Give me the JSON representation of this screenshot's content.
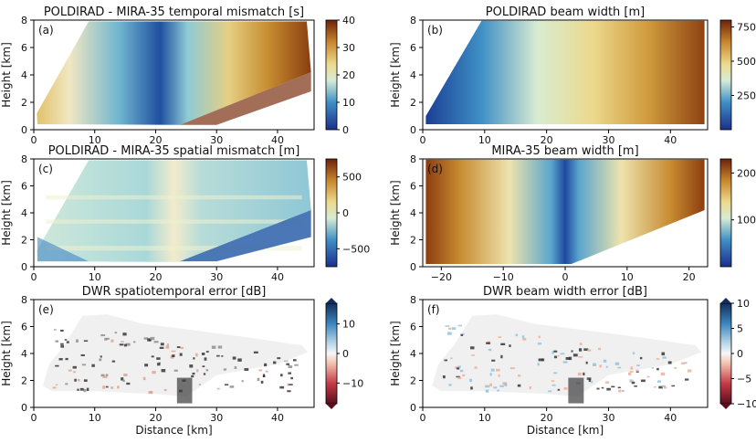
{
  "colors": {
    "balance": [
      "#2a1a6e",
      "#1e4fa5",
      "#3a8bc2",
      "#8fc9d6",
      "#f1f0d4",
      "#e7cb6f",
      "#c98b28",
      "#9c4a15",
      "#5e1608"
    ],
    "cividis_like": [
      "#1b2f8c",
      "#2b73b8",
      "#63b3d1",
      "#bfe0d3",
      "#f2ecc4",
      "#e6c776",
      "#c58d2e",
      "#8b3f10"
    ],
    "diverging_err": [
      "#4a0c1c",
      "#b5283a",
      "#f2a48a",
      "#f5f5f5",
      "#9ecae1",
      "#2f7fba",
      "#14305e"
    ]
  },
  "chart_data": [
    {
      "id": "a",
      "type": "heatmap",
      "panel_label": "(a)",
      "title": "POLDIRAD - MIRA-35 temporal mismatch [s]",
      "ylabel": "Height [km]",
      "xlabel": "",
      "xlim": [
        0,
        46
      ],
      "ylim": [
        0,
        8
      ],
      "xticks": [
        "0",
        "10",
        "20",
        "30",
        "40"
      ],
      "yticks": [
        "0",
        "2",
        "4",
        "6",
        "8"
      ],
      "colorbar": {
        "range": [
          0,
          40
        ],
        "ticks": [
          "0",
          "10",
          "20",
          "30",
          "40"
        ]
      }
    },
    {
      "id": "b",
      "type": "heatmap",
      "panel_label": "(b)",
      "title": "POLDIRAD beam width [m]",
      "ylabel": "Height [km]",
      "xlabel": "",
      "xlim": [
        0,
        46
      ],
      "ylim": [
        0,
        8
      ],
      "xticks": [
        "0",
        "10",
        "20",
        "30",
        "40"
      ],
      "yticks": [
        "0",
        "2",
        "4",
        "6",
        "8"
      ],
      "colorbar": {
        "range": [
          0,
          800
        ],
        "ticks": [
          "250",
          "500",
          "750"
        ]
      }
    },
    {
      "id": "c",
      "type": "heatmap",
      "panel_label": "(c)",
      "title": "POLDIRAD - MIRA-35 spatial mismatch [m]",
      "ylabel": "Height [km]",
      "xlabel": "",
      "xlim": [
        0,
        46
      ],
      "ylim": [
        0,
        8
      ],
      "xticks": [
        "0",
        "10",
        "20",
        "30",
        "40"
      ],
      "yticks": [
        "0",
        "2",
        "4",
        "6",
        "8"
      ],
      "colorbar": {
        "range": [
          -750,
          750
        ],
        "ticks": [
          "500",
          "0",
          "−500"
        ]
      }
    },
    {
      "id": "d",
      "type": "heatmap",
      "panel_label": "(d)",
      "title": "MIRA-35 beam width [m]",
      "ylabel": "Height [km]",
      "xlabel": "",
      "xlim": [
        -23,
        23
      ],
      "ylim": [
        0,
        8
      ],
      "xticks": [
        "−20",
        "−10",
        "0",
        "10",
        "20"
      ],
      "yticks": [
        "0",
        "2",
        "4",
        "6",
        "8"
      ],
      "colorbar": {
        "range": [
          0,
          230
        ],
        "ticks": [
          "200",
          "100"
        ]
      }
    },
    {
      "id": "e",
      "type": "heatmap",
      "panel_label": "(e)",
      "title": "DWR spatiotemporal error [dB]",
      "ylabel": "Height [km]",
      "xlabel": "Distance [km]",
      "xlim": [
        0,
        46
      ],
      "ylim": [
        0,
        8
      ],
      "xticks": [
        "0",
        "10",
        "20",
        "30",
        "40"
      ],
      "yticks": [
        "0",
        "2",
        "4",
        "6",
        "8"
      ],
      "colorbar": {
        "range": [
          -17,
          17
        ],
        "ticks": [
          "10",
          "0",
          "−10"
        ]
      }
    },
    {
      "id": "f",
      "type": "heatmap",
      "panel_label": "(f)",
      "title": "DWR beam width error [dB]",
      "ylabel": "Height [km]",
      "xlabel": "Distance [km]",
      "xlim": [
        0,
        46
      ],
      "ylim": [
        0,
        8
      ],
      "xticks": [
        "0",
        "10",
        "20",
        "30",
        "40"
      ],
      "yticks": [
        "0",
        "2",
        "4",
        "6",
        "8"
      ],
      "colorbar": {
        "range": [
          -10,
          10
        ],
        "ticks": [
          "10",
          "5",
          "0",
          "−5",
          "−10"
        ]
      }
    }
  ]
}
